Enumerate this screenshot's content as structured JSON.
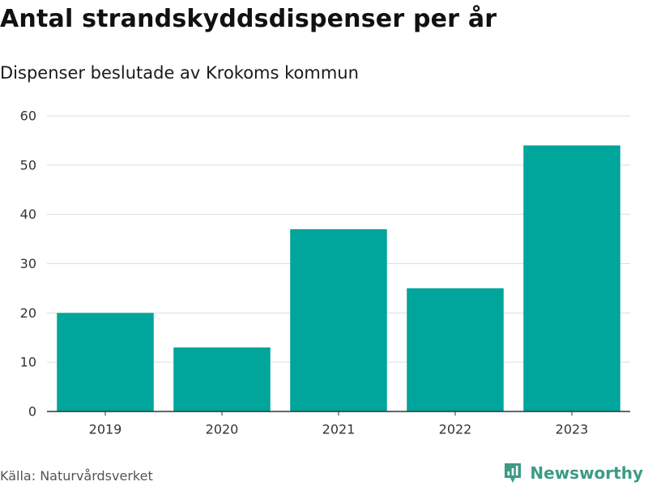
{
  "chart_data": {
    "type": "bar",
    "title": "Antal strandskyddsdispenser per år",
    "subtitle": "Dispenser beslutade av Krokoms kommun",
    "categories": [
      "2019",
      "2020",
      "2021",
      "2022",
      "2023"
    ],
    "values": [
      20,
      13,
      37,
      25,
      54
    ],
    "ylim": [
      0,
      60
    ],
    "yticks": [
      0,
      10,
      20,
      30,
      40,
      50,
      60
    ],
    "xlabel": "",
    "ylabel": "",
    "grid": true,
    "legend": "none",
    "bar_color": "#00a59b"
  },
  "source": "Källa: Naturvårdsverket",
  "brand": {
    "name": "Newsworthy",
    "icon": "newsworthy-logo-icon",
    "color": "#3d9a86"
  }
}
